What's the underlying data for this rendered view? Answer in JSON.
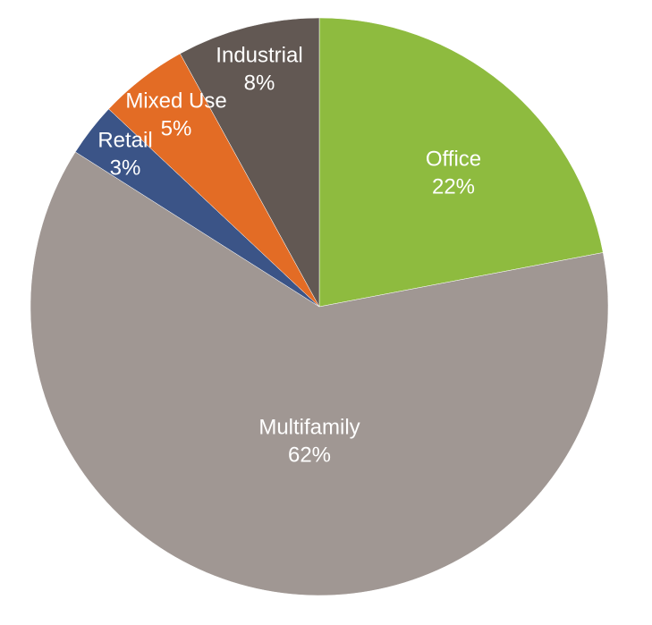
{
  "chart_data": {
    "type": "pie",
    "title": "",
    "categories": [
      "Office",
      "Multifamily",
      "Retail",
      "Mixed Use",
      "Industrial"
    ],
    "values": [
      22,
      62,
      3,
      5,
      8
    ],
    "value_labels": [
      "22%",
      "62%",
      "3%",
      "5%",
      "8%"
    ],
    "colors": [
      "#8ebb3f",
      "#a09793",
      "#3b5487",
      "#e36c25",
      "#625853"
    ],
    "label_color": "#ffffff",
    "start": "12 o'clock",
    "direction": "clockwise",
    "legend": "none"
  }
}
